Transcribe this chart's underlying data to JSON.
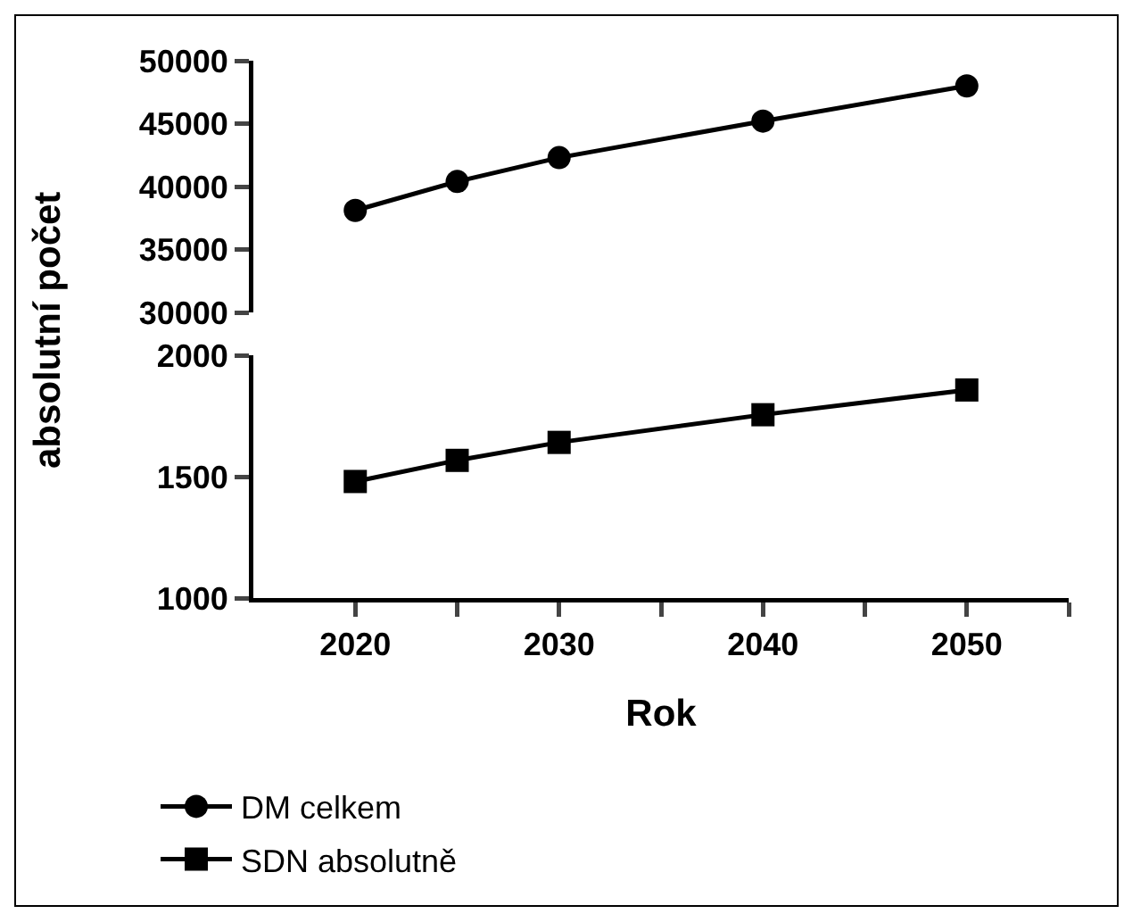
{
  "chart_data": [
    {
      "type": "line",
      "x": [
        2020,
        2025,
        2030,
        2040,
        2050
      ],
      "series": [
        {
          "name": "DM celkem",
          "color": "#000000",
          "values": [
            38100,
            40400,
            42300,
            45200,
            48000
          ]
        }
      ],
      "ylim": [
        30000,
        50000
      ],
      "yticks": [
        30000,
        35000,
        40000,
        45000,
        50000
      ],
      "marker": "circle",
      "line_style": "solid",
      "legend": "bottom",
      "tick_labels": "y"
    },
    {
      "type": "line",
      "x": [
        2020,
        2025,
        2030,
        2040,
        2050
      ],
      "xlim": [
        2015,
        2055
      ],
      "series": [
        {
          "name": "SDN absolutně",
          "color": "#000000",
          "values": [
            1480,
            1567,
            1641,
            1755,
            1857
          ]
        }
      ],
      "ylim": [
        1000,
        2000
      ],
      "yticks": [
        1000,
        1500,
        2000
      ],
      "xticks": [
        2020,
        {
          "value": 2025,
          "label": null
        },
        2030,
        {
          "value": 2035,
          "label": null
        },
        2040,
        {
          "value": 2045,
          "label": null
        },
        2050,
        {
          "value": 2055,
          "label": null
        }
      ],
      "xlabel": "Rok",
      "ylabel": "absolutní počet",
      "marker": "square",
      "line_style": "solid",
      "legend": "bottom"
    }
  ]
}
